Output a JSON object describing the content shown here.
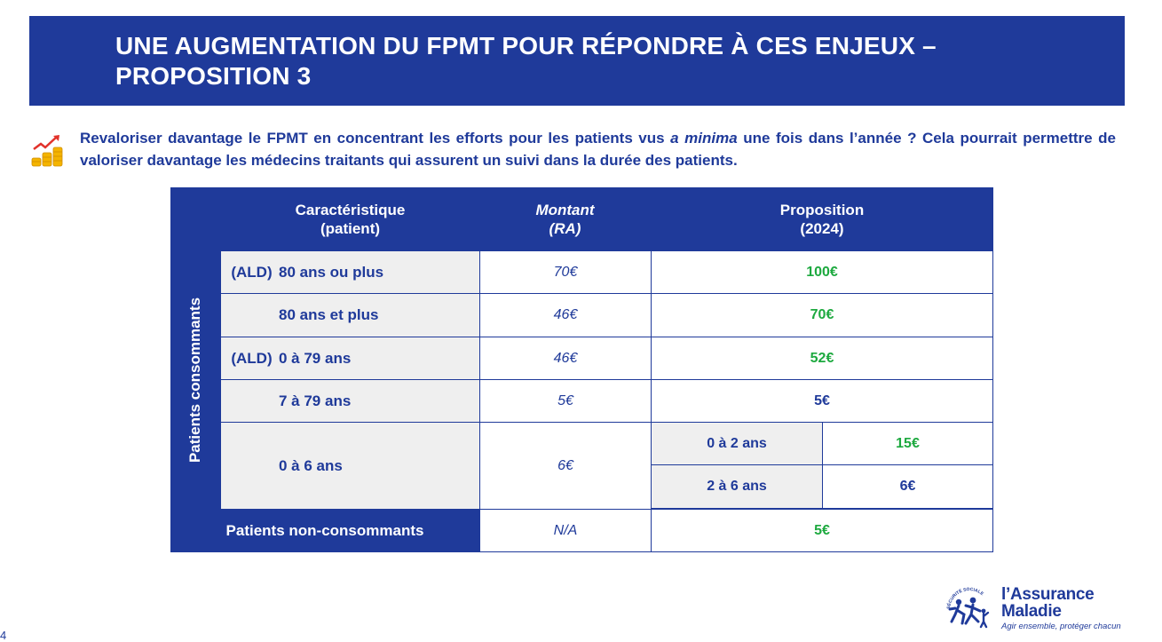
{
  "banner": {
    "title_line1": "UNE AUGMENTATION DU FPMT POUR RÉPONDRE À CES ENJEUX –",
    "title_line2": "PROPOSITION 3"
  },
  "intro": {
    "icon": "growth-chart-coins-icon",
    "text_part1": "Revaloriser davantage le FPMT en concentrant les efforts pour les patients vus ",
    "text_italic": "a minima",
    "text_part2": " une fois dans l’année ? Cela pourrait permettre de valoriser davantage les médecins traitants qui assurent un suivi dans la durée des patients."
  },
  "table": {
    "headers": {
      "characteristic_line1": "Caractéristique",
      "characteristic_line2": "(patient)",
      "amount_line1": "Montant",
      "amount_line2": "(RA)",
      "proposal_line1": "Proposition",
      "proposal_line2": "(2024)"
    },
    "side_label": "Patients consommants",
    "rows": [
      {
        "prefix": "(ALD)",
        "label": "80 ans ou plus",
        "amount": "70€",
        "proposal": "100€"
      },
      {
        "prefix": "",
        "label": "80 ans et plus",
        "amount": "46€",
        "proposal": "70€"
      },
      {
        "prefix": "(ALD)",
        "label": "0 à 79 ans",
        "amount": "46€",
        "proposal": "52€"
      },
      {
        "prefix": "",
        "label": "7 à 79 ans",
        "amount": "5€",
        "proposal": "5€"
      },
      {
        "prefix": "",
        "label": "0 à 6 ans",
        "amount": "6€",
        "sub": [
          {
            "age": "0 à 2 ans",
            "proposal": "15€"
          },
          {
            "age": "2 à 6 ans",
            "proposal": "6€"
          }
        ]
      }
    ],
    "non_consumers": {
      "label": "Patients non-consommants",
      "amount": "N/A",
      "proposal": "5€"
    }
  },
  "footer": {
    "page_number": "4",
    "logo_line1": "l’Assurance",
    "logo_line2": "Maladie",
    "logo_slogan": "Agir ensemble, protéger chacun",
    "logo_seal_text": "SÉCURITÉ SOCIALE"
  },
  "colors": {
    "primary": "#1f3a9a",
    "green": "#1da93f",
    "light_gray": "#efefef"
  }
}
